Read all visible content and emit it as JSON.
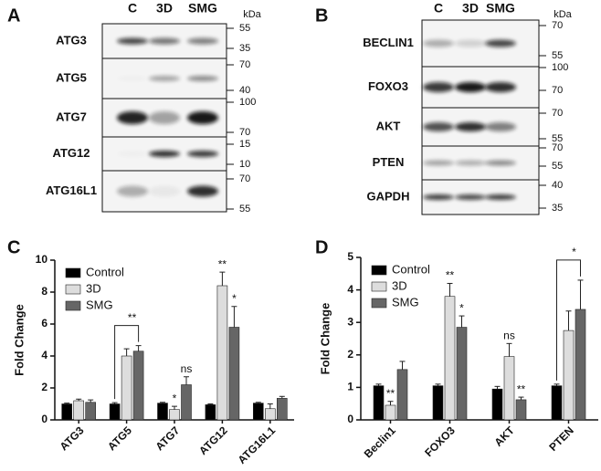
{
  "panels": [
    {
      "label": "A",
      "columns": [
        "C",
        "3D",
        "SMG"
      ],
      "unit": "kDa",
      "rows": [
        {
          "name": "ATG3",
          "markers": [
            55,
            35
          ]
        },
        {
          "name": "ATG5",
          "markers": [
            70,
            40
          ]
        },
        {
          "name": "ATG7",
          "markers": [
            100,
            70
          ]
        },
        {
          "name": "ATG12",
          "markers": [
            15,
            10
          ]
        },
        {
          "name": "ATG16L1",
          "markers": [
            70,
            55
          ]
        }
      ]
    },
    {
      "label": "B",
      "columns": [
        "C",
        "3D",
        "SMG"
      ],
      "unit": "kDa",
      "rows": [
        {
          "name": "BECLIN1",
          "markers": [
            70,
            55
          ]
        },
        {
          "name": "FOXO3",
          "markers": [
            100,
            70
          ]
        },
        {
          "name": "AKT",
          "markers": [
            70,
            55
          ]
        },
        {
          "name": "PTEN",
          "markers": [
            70,
            55
          ]
        },
        {
          "name": "GAPDH",
          "markers": [
            40,
            35
          ]
        }
      ]
    }
  ],
  "chart_data": [
    {
      "type": "bar",
      "label": "C",
      "ylabel": "Fold Change",
      "categories": [
        "ATG3",
        "ATG5",
        "ATG7",
        "ATG12",
        "ATG16L1"
      ],
      "series": [
        {
          "name": "Control",
          "color": "#000000",
          "values": [
            1.0,
            1.0,
            1.05,
            0.95,
            1.05
          ],
          "errors": [
            0.05,
            0.08,
            0.05,
            0.05,
            0.05
          ]
        },
        {
          "name": "3D",
          "color": "#dddddd",
          "values": [
            1.2,
            4.0,
            0.65,
            8.4,
            0.7
          ],
          "errors": [
            0.1,
            0.45,
            0.2,
            0.85,
            0.3
          ]
        },
        {
          "name": "SMG",
          "color": "#666666",
          "values": [
            1.1,
            4.3,
            2.2,
            5.8,
            1.35
          ],
          "errors": [
            0.15,
            0.35,
            0.5,
            1.3,
            0.12
          ]
        }
      ],
      "ylim": [
        0,
        10
      ],
      "yticks": [
        0,
        2,
        4,
        6,
        8,
        10
      ],
      "legend": "upper left",
      "annotations": [
        {
          "category": 2,
          "series": 1,
          "text": "*"
        },
        {
          "category": 2,
          "series": 2,
          "text": "ns"
        },
        {
          "category": 3,
          "series": 1,
          "text": "**"
        },
        {
          "category": 3,
          "series": 2,
          "text": "*"
        }
      ],
      "brackets": [
        {
          "category": 1,
          "from": 0,
          "to": 2,
          "text": "**"
        }
      ]
    },
    {
      "type": "bar",
      "label": "D",
      "ylabel": "Fold Change",
      "categories": [
        "Beclin1",
        "FOXO3",
        "AKT",
        "PTEN"
      ],
      "series": [
        {
          "name": "Control",
          "color": "#000000",
          "values": [
            1.05,
            1.05,
            0.95,
            1.05
          ],
          "errors": [
            0.05,
            0.05,
            0.08,
            0.05
          ]
        },
        {
          "name": "3D",
          "color": "#dddddd",
          "values": [
            0.45,
            3.8,
            1.95,
            2.75
          ],
          "errors": [
            0.12,
            0.4,
            0.4,
            0.6
          ]
        },
        {
          "name": "SMG",
          "color": "#666666",
          "values": [
            1.55,
            2.85,
            0.62,
            3.4
          ],
          "errors": [
            0.25,
            0.35,
            0.08,
            0.9
          ]
        }
      ],
      "ylim": [
        0,
        5
      ],
      "yticks": [
        0,
        1,
        2,
        3,
        4,
        5
      ],
      "legend": "upper left",
      "annotations": [
        {
          "category": 0,
          "series": 1,
          "text": "**"
        },
        {
          "category": 1,
          "series": 1,
          "text": "**"
        },
        {
          "category": 1,
          "series": 2,
          "text": "*"
        },
        {
          "category": 2,
          "series": 1,
          "text": "ns"
        },
        {
          "category": 2,
          "series": 2,
          "text": "**"
        }
      ],
      "brackets": [
        {
          "category": 3,
          "from": 0,
          "to": 2,
          "text": "*"
        }
      ]
    }
  ]
}
